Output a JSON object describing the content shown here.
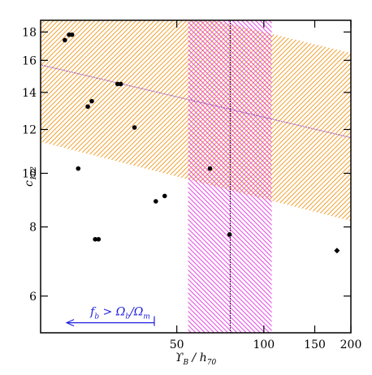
{
  "chart_data": {
    "type": "scatter",
    "x_label": [
      "ϒ",
      "B",
      " / h",
      "70"
    ],
    "y_label": [
      "c",
      "102"
    ],
    "log_x": true,
    "log_y": true,
    "xlim": [
      16.9,
      200
    ],
    "ylim": [
      5.15,
      18.9
    ],
    "xticks": [
      50,
      100,
      150,
      200
    ],
    "yticks": [
      6,
      8,
      10,
      12,
      14,
      16,
      18
    ],
    "points": {
      "color": "#000000",
      "x": [
        20.5,
        21.2,
        21.7,
        22.8,
        24.6,
        25.4,
        26.1,
        26.8,
        31.2,
        32.0,
        35.7,
        42.3,
        45.4,
        65.1,
        76.1
      ],
      "y": [
        17.4,
        17.8,
        17.8,
        10.2,
        13.2,
        13.5,
        7.6,
        7.6,
        14.5,
        14.5,
        12.1,
        8.9,
        9.1,
        10.2,
        7.75
      ]
    },
    "diamond": {
      "color": "#000000",
      "x": [
        179
      ],
      "y": [
        7.25
      ]
    },
    "fit_band": {
      "color": "#f0a030",
      "line_color": "#9040c0",
      "x": [
        16.9,
        200
      ],
      "lower": [
        11.4,
        8.2
      ],
      "center": [
        15.7,
        11.6
      ],
      "upper": [
        22.5,
        16.5
      ]
    },
    "x_band": {
      "color": "#e040e0",
      "x": [
        54.7,
        106.5
      ],
      "center": 76.5
    },
    "annotation": {
      "color": "#2020e0",
      "text": [
        "f",
        "b",
        " > Ω",
        "b",
        "/Ω",
        "m"
      ],
      "arrow_x": [
        41.8,
        20.8
      ],
      "y": 5.37
    }
  }
}
